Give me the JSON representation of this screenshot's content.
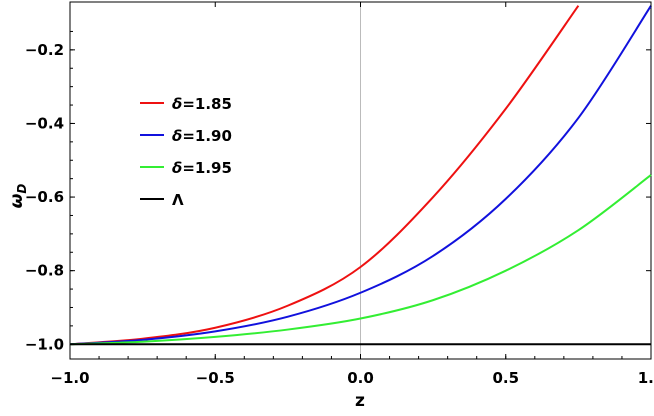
{
  "chart_data": {
    "type": "line",
    "title": "",
    "xlabel": "z",
    "ylabel": "ω_D",
    "xlim": [
      -1.0,
      1.0
    ],
    "ylim": [
      -1.04,
      -0.07
    ],
    "xticks": [
      "-1.0",
      "-0.5",
      "0.0",
      "0.5",
      "1.0"
    ],
    "yticks": [
      "-1.0",
      "-0.8",
      "-0.6",
      "-0.4",
      "-0.2"
    ],
    "grid": false,
    "legend_position": "upper-left",
    "series": [
      {
        "name": "δ=1.85",
        "color": "#ee1111",
        "x": [
          -1.0,
          -0.75,
          -0.5,
          -0.25,
          0.0,
          0.25,
          0.5,
          0.75
        ],
        "y": [
          -1.0,
          -0.985,
          -0.955,
          -0.895,
          -0.79,
          -0.6,
          -0.36,
          -0.08
        ]
      },
      {
        "name": "δ=1.90",
        "color": "#1111dd",
        "x": [
          -1.0,
          -0.75,
          -0.5,
          -0.25,
          0.0,
          0.25,
          0.5,
          0.75,
          1.0
        ],
        "y": [
          -1.0,
          -0.988,
          -0.965,
          -0.925,
          -0.86,
          -0.76,
          -0.605,
          -0.385,
          -0.08
        ]
      },
      {
        "name": "δ=1.95",
        "color": "#33ee33",
        "x": [
          -1.0,
          -0.75,
          -0.5,
          -0.25,
          0.0,
          0.25,
          0.5,
          0.75,
          1.0
        ],
        "y": [
          -1.0,
          -0.993,
          -0.98,
          -0.96,
          -0.93,
          -0.88,
          -0.8,
          -0.69,
          -0.54
        ]
      },
      {
        "name": "Λ",
        "color": "#000000",
        "x": [
          -1.0,
          1.0
        ],
        "y": [
          -1.0,
          -1.0
        ]
      }
    ]
  }
}
